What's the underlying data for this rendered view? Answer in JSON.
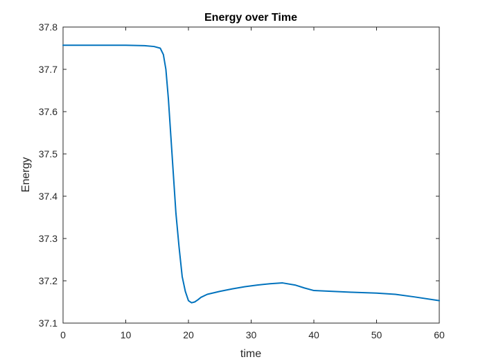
{
  "chart_data": {
    "type": "line",
    "title": "Energy over Time",
    "xlabel": "time",
    "ylabel": "Energy",
    "xlim": [
      0,
      60
    ],
    "ylim": [
      37.1,
      37.8
    ],
    "xticks": [
      "0",
      "10",
      "20",
      "30",
      "40",
      "50",
      "60"
    ],
    "yticks": [
      "37.1",
      "37.2",
      "37.3",
      "37.4",
      "37.5",
      "37.6",
      "37.7",
      "37.8"
    ],
    "grid": false,
    "legend": "none",
    "line_color": "#0072BD",
    "series": [
      {
        "x": [
          0,
          5,
          10,
          13,
          14.5,
          15.5,
          16.0,
          16.4,
          16.8,
          17.2,
          17.6,
          18.0,
          18.5,
          19.0,
          19.5,
          20.0,
          20.5,
          21.0,
          21.5,
          22.0,
          23.0,
          25,
          27,
          29,
          31,
          33,
          35,
          37,
          38.5,
          40,
          43,
          46,
          50,
          53,
          56,
          60
        ],
        "y": [
          37.757,
          37.757,
          37.757,
          37.756,
          37.754,
          37.75,
          37.735,
          37.7,
          37.63,
          37.54,
          37.45,
          37.36,
          37.28,
          37.21,
          37.175,
          37.153,
          37.148,
          37.15,
          37.155,
          37.161,
          37.168,
          37.175,
          37.181,
          37.186,
          37.19,
          37.193,
          37.195,
          37.19,
          37.183,
          37.177,
          37.175,
          37.173,
          37.171,
          37.168,
          37.162,
          37.153
        ]
      }
    ]
  }
}
